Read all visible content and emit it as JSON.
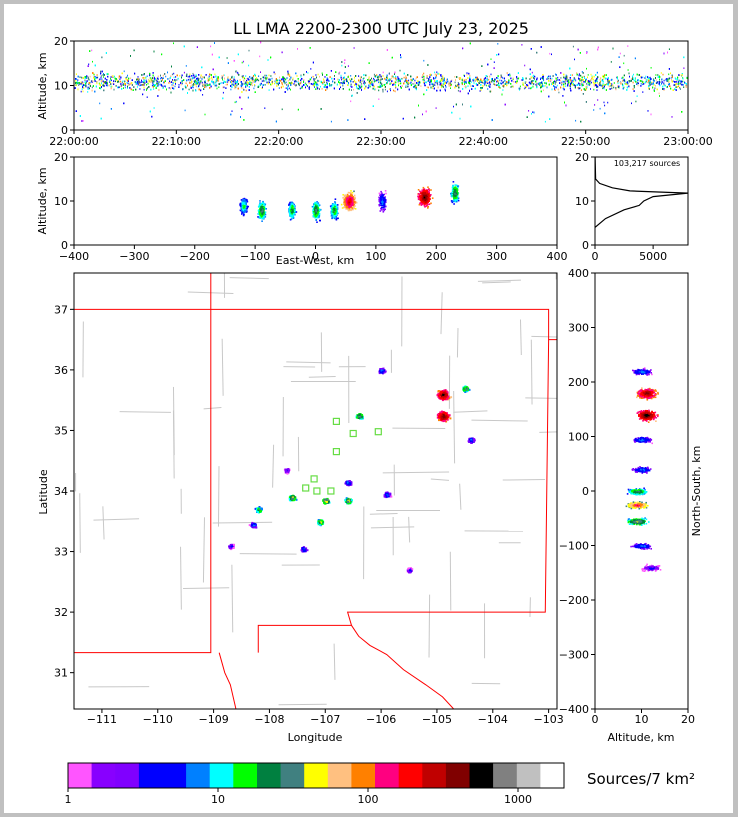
{
  "chart_data": [
    {
      "type": "scatter",
      "panel": "altitude-vs-time",
      "title": "LL LMA 2200-2300 UTC July 23, 2025",
      "xlabel": "",
      "ylabel": "Altitude, km",
      "ylim": [
        0,
        20
      ],
      "yticks": [
        "0",
        "10",
        "20"
      ],
      "xticks": [
        "22:00:00",
        "22:10:00",
        "22:20:00",
        "22:30:00",
        "22:40:00",
        "22:50:00",
        "23:00:00"
      ],
      "description_density": "continuous band of sources centered near 10-12 km altitude throughout the hour"
    },
    {
      "type": "scatter",
      "panel": "altitude-vs-east-west",
      "xlabel": "East-West, km",
      "ylabel": "Altitude, km",
      "xlim": [
        -400,
        400
      ],
      "ylim": [
        0,
        20
      ],
      "xticks": [
        "−400",
        "−300",
        "−200",
        "−100",
        "0",
        "100",
        "200",
        "300",
        "400"
      ],
      "yticks": [
        "0",
        "10",
        "20"
      ],
      "clusters": [
        {
          "x": -120,
          "y": 9,
          "intensity": 20
        },
        {
          "x": -90,
          "y": 8,
          "intensity": 40
        },
        {
          "x": -40,
          "y": 8,
          "intensity": 30
        },
        {
          "x": 0,
          "y": 8,
          "intensity": 40
        },
        {
          "x": 30,
          "y": 8,
          "intensity": 30
        },
        {
          "x": 55,
          "y": 10,
          "intensity": 300
        },
        {
          "x": 110,
          "y": 10,
          "intensity": 10
        },
        {
          "x": 180,
          "y": 11,
          "intensity": 600
        },
        {
          "x": 230,
          "y": 12,
          "intensity": 40
        }
      ]
    },
    {
      "type": "line",
      "panel": "altitude-histogram",
      "annotation": "103,217 sources",
      "xlim": [
        0,
        8000
      ],
      "ylim": [
        0,
        20
      ],
      "xticks": [
        "0",
        "5000"
      ],
      "yticks": [
        "0",
        "10",
        "20"
      ],
      "profile": [
        {
          "alt": 4,
          "count": 0
        },
        {
          "alt": 6,
          "count": 900
        },
        {
          "alt": 8,
          "count": 2500
        },
        {
          "alt": 9,
          "count": 3800
        },
        {
          "alt": 10,
          "count": 4200
        },
        {
          "alt": 11,
          "count": 5000
        },
        {
          "alt": 11.8,
          "count": 8000
        },
        {
          "alt": 12.3,
          "count": 3000
        },
        {
          "alt": 13,
          "count": 1500
        },
        {
          "alt": 14,
          "count": 400
        },
        {
          "alt": 15,
          "count": 50
        },
        {
          "alt": 21,
          "count": 0
        }
      ]
    },
    {
      "type": "scatter",
      "panel": "plan-view-map",
      "xlabel": "Longitude",
      "ylabel": "Latitude",
      "xlim": [
        -111.5,
        -102.85
      ],
      "ylim": [
        30.4,
        37.6
      ],
      "xticks": [
        "−111",
        "−110",
        "−109",
        "−108",
        "−107",
        "−106",
        "−105",
        "−104",
        "−103"
      ],
      "yticks": [
        "31",
        "32",
        "33",
        "34",
        "35",
        "36",
        "37"
      ],
      "clusters": [
        {
          "lon": -104.9,
          "lat": 35.6,
          "intensity": 600
        },
        {
          "lon": -104.9,
          "lat": 35.25,
          "intensity": 600
        },
        {
          "lon": -104.5,
          "lat": 35.7,
          "intensity": 50
        },
        {
          "lon": -106.4,
          "lat": 35.25,
          "intensity": 60
        },
        {
          "lon": -104.4,
          "lat": 34.85,
          "intensity": 10
        },
        {
          "lon": -106.0,
          "lat": 36.0,
          "intensity": 10
        },
        {
          "lon": -106.6,
          "lat": 33.85,
          "intensity": 60
        },
        {
          "lon": -107.0,
          "lat": 33.85,
          "intensity": 80
        },
        {
          "lon": -107.1,
          "lat": 33.5,
          "intensity": 50
        },
        {
          "lon": -107.6,
          "lat": 33.9,
          "intensity": 60
        },
        {
          "lon": -108.2,
          "lat": 33.7,
          "intensity": 40
        },
        {
          "lon": -108.3,
          "lat": 33.45,
          "intensity": 10
        },
        {
          "lon": -107.4,
          "lat": 33.05,
          "intensity": 10
        },
        {
          "lon": -106.6,
          "lat": 34.15,
          "intensity": 10
        },
        {
          "lon": -107.7,
          "lat": 34.35,
          "intensity": 5
        },
        {
          "lon": -105.9,
          "lat": 33.95,
          "intensity": 10
        },
        {
          "lon": -105.5,
          "lat": 32.7,
          "intensity": 5
        },
        {
          "lon": -108.7,
          "lat": 33.1,
          "intensity": 5
        }
      ],
      "stations": [
        {
          "lon": -106.8,
          "lat": 35.15
        },
        {
          "lon": -106.5,
          "lat": 34.95
        },
        {
          "lon": -106.05,
          "lat": 34.98
        },
        {
          "lon": -106.8,
          "lat": 34.65
        },
        {
          "lon": -107.35,
          "lat": 34.05
        },
        {
          "lon": -107.15,
          "lat": 34.0
        },
        {
          "lon": -107.2,
          "lat": 34.2
        },
        {
          "lon": -106.9,
          "lat": 34.0
        }
      ]
    },
    {
      "type": "scatter",
      "panel": "north-south-vs-altitude",
      "xlabel": "Altitude, km",
      "ylabel": "North-South, km",
      "xlim": [
        0,
        20
      ],
      "ylim": [
        -400,
        400
      ],
      "xticks": [
        "0",
        "10",
        "20"
      ],
      "yticks": [
        "−400",
        "−300",
        "−200",
        "−100",
        "0",
        "100",
        "200",
        "300",
        "400"
      ],
      "clusters": [
        {
          "x": 11,
          "y": 180,
          "intensity": 500
        },
        {
          "x": 11,
          "y": 140,
          "intensity": 700
        },
        {
          "x": 10,
          "y": 95,
          "intensity": 10
        },
        {
          "x": 10,
          "y": 220,
          "intensity": 10
        },
        {
          "x": 9,
          "y": 0,
          "intensity": 40
        },
        {
          "x": 9,
          "y": -25,
          "intensity": 200
        },
        {
          "x": 9,
          "y": -55,
          "intensity": 60
        },
        {
          "x": 10,
          "y": 40,
          "intensity": 10
        },
        {
          "x": 10,
          "y": -100,
          "intensity": 10
        },
        {
          "x": 12,
          "y": -140,
          "intensity": 5
        }
      ]
    },
    {
      "type": "heatmap",
      "panel": "colorbar",
      "label": "Sources/7 km²",
      "scale": "log",
      "ticks": [
        "1",
        "10",
        "100",
        "1000"
      ],
      "colors": [
        "#ff55ff",
        "#8800ff",
        "#8000ff",
        "#0000ff",
        "#0000ff",
        "#0080ff",
        "#00ffff",
        "#00ff00",
        "#008040",
        "#408080",
        "#ffff00",
        "#ffc080",
        "#ff8000",
        "#ff0080",
        "#ff0000",
        "#c00000",
        "#800000",
        "#000000",
        "#808080",
        "#c0c0c0",
        "#ffffff"
      ]
    }
  ]
}
